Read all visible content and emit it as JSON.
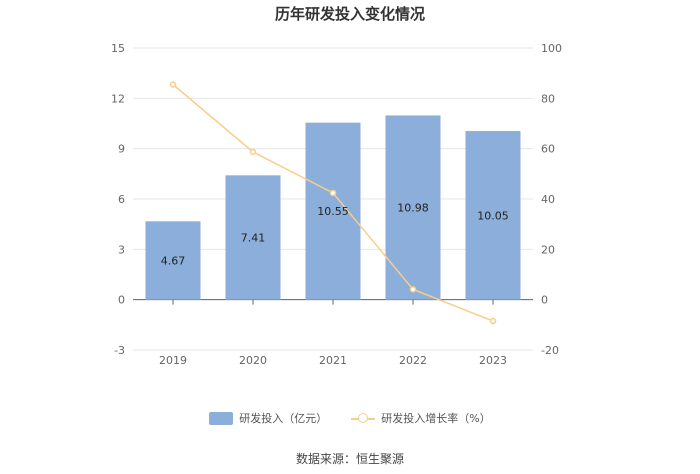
{
  "chart_data": {
    "type": "bar",
    "title": "历年研发投入变化情况",
    "categories": [
      "2019",
      "2020",
      "2021",
      "2022",
      "2023"
    ],
    "series": [
      {
        "name": "研发投入（亿元）",
        "type": "bar",
        "axis": "left",
        "values": [
          4.67,
          7.41,
          10.55,
          10.98,
          10.05
        ],
        "labels": [
          "4.67",
          "7.41",
          "10.55",
          "10.98",
          "10.05"
        ]
      },
      {
        "name": "研发投入增长率（%）",
        "type": "line",
        "axis": "right",
        "values": [
          85.5,
          58.7,
          42.4,
          4.1,
          -8.5
        ]
      }
    ],
    "y_left": {
      "min": -3,
      "max": 15,
      "ticks": [
        "-3",
        "0",
        "3",
        "6",
        "9",
        "12",
        "15"
      ]
    },
    "y_right": {
      "min": -20,
      "max": 100,
      "ticks": [
        "-20",
        "0",
        "20",
        "40",
        "60",
        "80",
        "100"
      ]
    },
    "legend_position": "bottom",
    "colors": {
      "bar": "#8caedb",
      "line": "#f7cd8a"
    }
  },
  "source": "数据来源：恒生聚源"
}
